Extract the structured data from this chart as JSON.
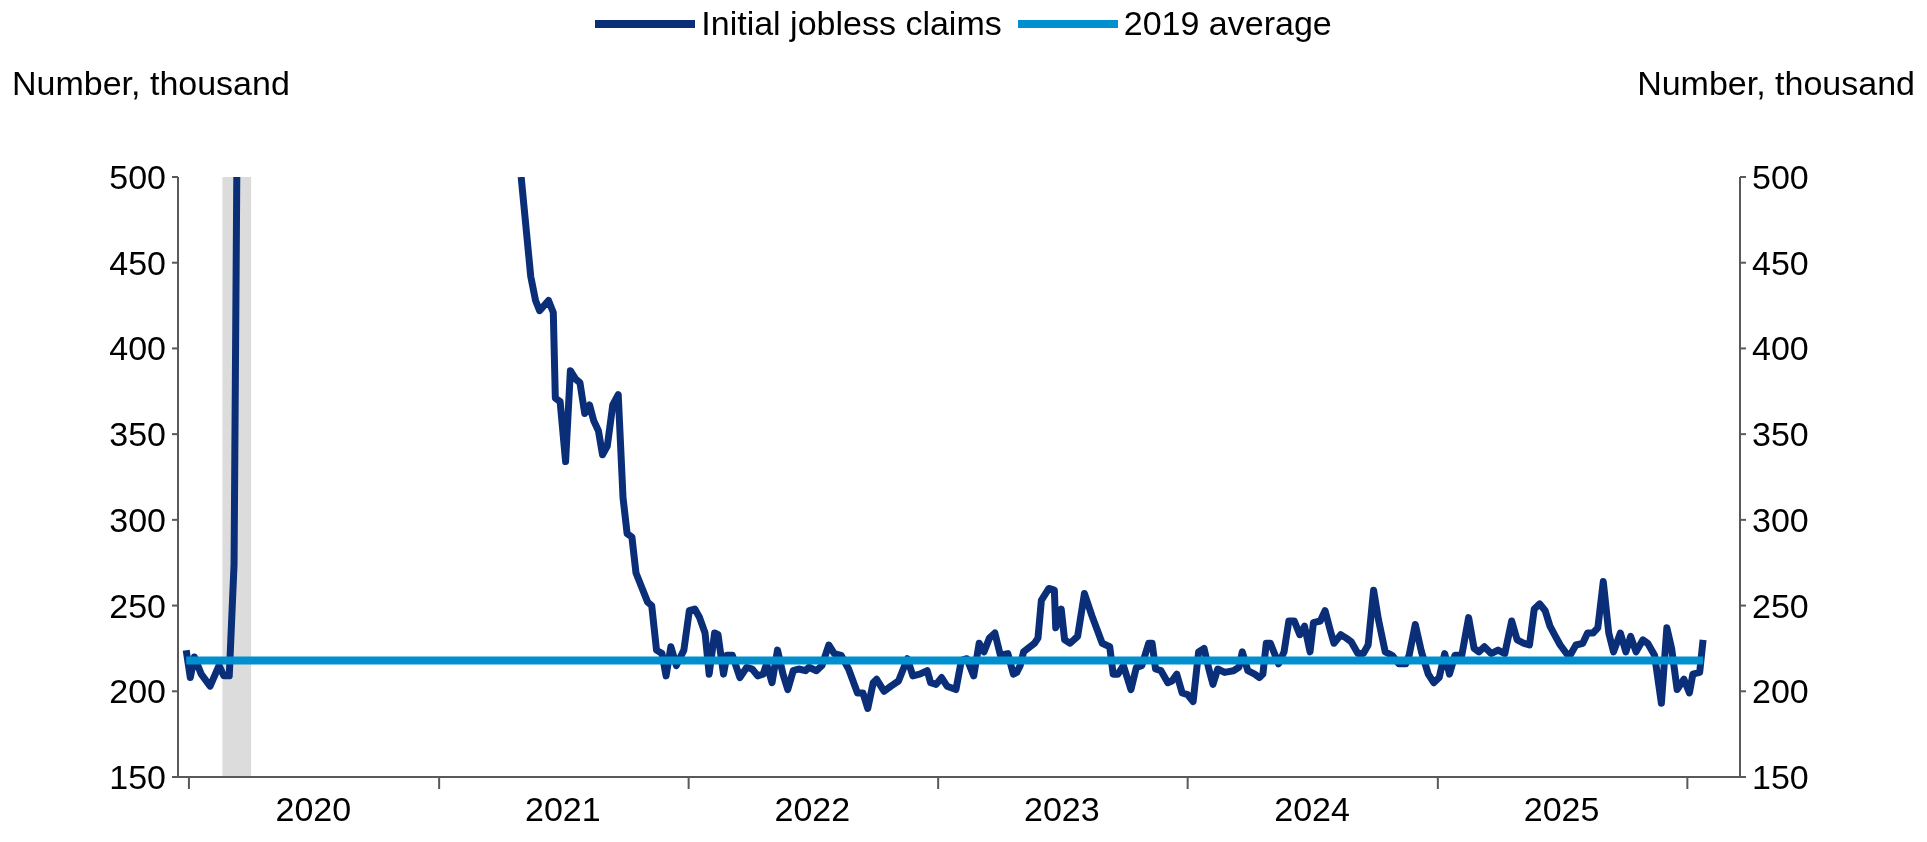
{
  "chart_data": {
    "type": "line",
    "ylabel": "Number, thousand",
    "y2label": "Number, thousand",
    "ylim": [
      150,
      500
    ],
    "yticks": [
      150,
      200,
      250,
      300,
      350,
      400,
      450,
      500
    ],
    "y2lim": [
      150,
      500
    ],
    "y2ticks": [
      150,
      200,
      250,
      300,
      350,
      400,
      450,
      500
    ],
    "xlim": [
      "2019-12-16",
      "2026-03-19"
    ],
    "xticks": [
      {
        "value": "2020-01-01",
        "label": null
      },
      {
        "value": "2020-07-01",
        "label": "2020"
      },
      {
        "value": "2021-01-01",
        "label": null
      },
      {
        "value": "2021-07-01",
        "label": "2021"
      },
      {
        "value": "2022-01-01",
        "label": null
      },
      {
        "value": "2022-07-01",
        "label": "2022"
      },
      {
        "value": "2023-01-01",
        "label": null
      },
      {
        "value": "2023-07-01",
        "label": "2023"
      },
      {
        "value": "2024-01-01",
        "label": null
      },
      {
        "value": "2024-07-01",
        "label": "2024"
      },
      {
        "value": "2025-01-01",
        "label": null
      },
      {
        "value": "2025-07-01",
        "label": "2025"
      },
      {
        "value": "2026-01-01",
        "label": null
      }
    ],
    "legend": "top",
    "bands": [
      {
        "axis": "x",
        "from": "2020-02-19",
        "to": "2020-04-01",
        "color": "#dcdcdc"
      }
    ],
    "series": [
      {
        "name": "Initial jobless claims",
        "color": "#0a2f78",
        "x": [
          "2019-12-28",
          "2020-01-03",
          "2020-01-09",
          "2020-01-19",
          "2020-02-01",
          "2020-02-14",
          "2020-02-21",
          "2020-02-29",
          "2020-03-07",
          "2020-03-11",
          "2020-06-01",
          "2021-05-01",
          "2021-05-15",
          "2021-05-22",
          "2021-05-28",
          "2021-06-10",
          "2021-06-17",
          "2021-06-20",
          "2021-06-27",
          "2021-07-05",
          "2021-07-12",
          "2021-07-20",
          "2021-07-26",
          "2021-08-02",
          "2021-08-09",
          "2021-08-15",
          "2021-08-22",
          "2021-08-28",
          "2021-09-04",
          "2021-09-12",
          "2021-09-20",
          "2021-09-27",
          "2021-10-03",
          "2021-10-10",
          "2021-10-16",
          "2021-10-23",
          "2021-11-02",
          "2021-11-08",
          "2021-11-15",
          "2021-11-23",
          "2021-11-29",
          "2021-12-06",
          "2021-12-14",
          "2021-12-25",
          "2022-01-02",
          "2022-01-10",
          "2022-01-17",
          "2022-01-25",
          "2022-01-31",
          "2022-02-08",
          "2022-02-13",
          "2022-02-21",
          "2022-02-26",
          "2022-03-06",
          "2022-03-17",
          "2022-03-27",
          "2022-04-04",
          "2022-04-12",
          "2022-04-20",
          "2022-04-25",
          "2022-05-03",
          "2022-05-11",
          "2022-05-19",
          "2022-05-26",
          "2022-06-03",
          "2022-06-11",
          "2022-06-21",
          "2022-06-26",
          "2022-07-07",
          "2022-07-15",
          "2022-07-25",
          "2022-08-02",
          "2022-08-12",
          "2022-08-23",
          "2022-09-05",
          "2022-09-13",
          "2022-09-20",
          "2022-09-28",
          "2022-10-03",
          "2022-10-14",
          "2022-10-24",
          "2022-11-04",
          "2022-11-17",
          "2022-11-25",
          "2022-12-05",
          "2022-12-16",
          "2022-12-21",
          "2022-12-29",
          "2023-01-06",
          "2023-01-14",
          "2023-01-27",
          "2023-02-04",
          "2023-02-12",
          "2023-02-22",
          "2023-03-02",
          "2023-03-09",
          "2023-03-17",
          "2023-03-25",
          "2023-04-02",
          "2023-04-13",
          "2023-04-21",
          "2023-04-26",
          "2023-05-01",
          "2023-05-06",
          "2023-05-22",
          "2023-05-27",
          "2023-06-01",
          "2023-06-12",
          "2023-06-20",
          "2023-06-22",
          "2023-06-30",
          "2023-07-05",
          "2023-07-13",
          "2023-07-24",
          "2023-08-03",
          "2023-08-14",
          "2023-08-29",
          "2023-09-09",
          "2023-09-14",
          "2023-09-21",
          "2023-09-29",
          "2023-10-10",
          "2023-10-18",
          "2023-10-26",
          "2023-11-05",
          "2023-11-10",
          "2023-11-15",
          "2023-11-23",
          "2023-12-03",
          "2023-12-09",
          "2023-12-16",
          "2023-12-24",
          "2024-01-01",
          "2024-01-09",
          "2024-01-17",
          "2024-01-25",
          "2024-02-01",
          "2024-02-07",
          "2024-02-14",
          "2024-02-24",
          "2024-03-08",
          "2024-03-16",
          "2024-03-21",
          "2024-03-29",
          "2024-04-08",
          "2024-04-15",
          "2024-04-20",
          "2024-04-25",
          "2024-05-01",
          "2024-05-08",
          "2024-05-13",
          "2024-05-21",
          "2024-05-28",
          "2024-06-05",
          "2024-06-13",
          "2024-06-20",
          "2024-06-28",
          "2024-07-03",
          "2024-07-13",
          "2024-07-20",
          "2024-07-28",
          "2024-08-02",
          "2024-08-12",
          "2024-08-20",
          "2024-08-27",
          "2024-09-06",
          "2024-09-14",
          "2024-09-21",
          "2024-09-29",
          "2024-10-06",
          "2024-10-16",
          "2024-10-26",
          "2024-11-05",
          "2024-11-15",
          "2024-11-20",
          "2024-11-29",
          "2024-12-08",
          "2024-12-18",
          "2024-12-26",
          "2025-01-03",
          "2025-01-11",
          "2025-01-18",
          "2025-01-26",
          "2025-02-05",
          "2025-02-15",
          "2025-02-23",
          "2025-03-02",
          "2025-03-10",
          "2025-03-20",
          "2025-03-30",
          "2025-04-09",
          "2025-04-19",
          "2025-04-27",
          "2025-05-07",
          "2025-05-15",
          "2025-05-22",
          "2025-05-30",
          "2025-06-07",
          "2025-06-14",
          "2025-06-22",
          "2025-06-29",
          "2025-07-12",
          "2025-07-22",
          "2025-08-01",
          "2025-08-08",
          "2025-08-16",
          "2025-08-23",
          "2025-08-31",
          "2025-09-08",
          "2025-09-15",
          "2025-09-25",
          "2025-10-03",
          "2025-10-10",
          "2025-10-18",
          "2025-10-28",
          "2025-11-04",
          "2025-11-14",
          "2025-11-24",
          "2025-12-02",
          "2025-12-09",
          "2025-12-17",
          "2025-12-27",
          "2026-01-04",
          "2026-01-09",
          "2026-01-19",
          "2026-01-24"
        ],
        "values": [
          224,
          208,
          220,
          210,
          203,
          215,
          209,
          209,
          274,
          500,
          null,
          500,
          442,
          428,
          422,
          428,
          421,
          371,
          369,
          334,
          387,
          382,
          380,
          362,
          367,
          358,
          352,
          338,
          343,
          367,
          373,
          313,
          292,
          290,
          269,
          262,
          252,
          250,
          224,
          222,
          209,
          226,
          215,
          224,
          247,
          248,
          243,
          234,
          210,
          234,
          233,
          210,
          221,
          221,
          208,
          214,
          213,
          209,
          210,
          216,
          205,
          224,
          210,
          201,
          212,
          213,
          212,
          214,
          212,
          215,
          227,
          222,
          221,
          213,
          199,
          199,
          190,
          205,
          207,
          200,
          203,
          206,
          219,
          209,
          210,
          212,
          205,
          204,
          208,
          203,
          201,
          218,
          219,
          209,
          228,
          223,
          231,
          234,
          221,
          222,
          210,
          211,
          215,
          223,
          228,
          231,
          253,
          260,
          259,
          237,
          248,
          230,
          228,
          232,
          257,
          244,
          228,
          226,
          210,
          210,
          215,
          201,
          214,
          215,
          228,
          228,
          213,
          212,
          205,
          206,
          210,
          199,
          198,
          194,
          223,
          225,
          213,
          204,
          213,
          211,
          212,
          214,
          223,
          212,
          210,
          208,
          210,
          228,
          228,
          221,
          216,
          223,
          241,
          241,
          233,
          238,
          223,
          240,
          241,
          247,
          235,
          228,
          233,
          231,
          229,
          222,
          222,
          227,
          259,
          242,
          223,
          221,
          216,
          216,
          221,
          239,
          223,
          210,
          205,
          208,
          222,
          210,
          221,
          221,
          243,
          225,
          223,
          226,
          222,
          224,
          222,
          241,
          230,
          228,
          227,
          248,
          251,
          247,
          238,
          232,
          227,
          220,
          227,
          228,
          234,
          234,
          237,
          264,
          234,
          223,
          234,
          223,
          232,
          223,
          230,
          228,
          221,
          193,
          237,
          225,
          201,
          207,
          199,
          210,
          211,
          230
        ]
      },
      {
        "name": "2019 average",
        "color": "#0090d0",
        "x": [
          "2019-12-28",
          "2026-01-24"
        ],
        "values": [
          218,
          218
        ]
      }
    ]
  }
}
